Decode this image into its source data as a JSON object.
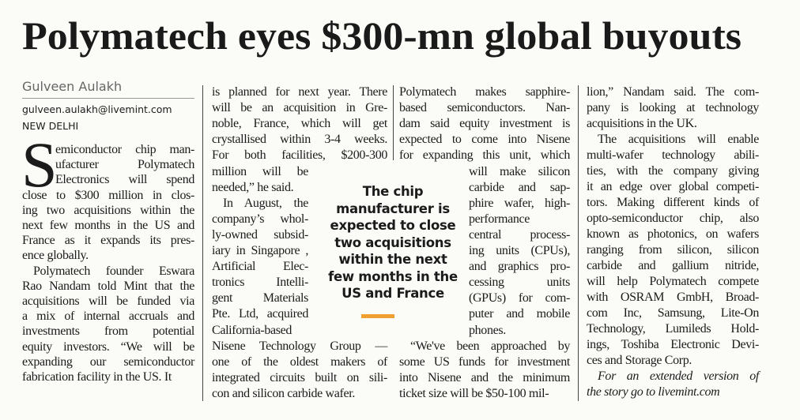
{
  "headline": "Polymatech eyes $300-mn global buyouts",
  "byline": {
    "author": "Gulveen Aulakh",
    "email": "gulveen.aulakh@livemint.com",
    "location": "NEW DELHI"
  },
  "drop_cap": "S",
  "columns": [
    {
      "paragraphs": [
        {
          "lines": [
            "emiconductor chip man-",
            "ufacturer Polymatech",
            "Electronics will spend",
            "close to $300 million in clos-",
            "ing two acquisitions within the",
            "next few months in the US and",
            "France as it expands its pres-",
            "ence globally."
          ]
        },
        {
          "lines": [
            "Polymatech founder Eswara",
            "Rao Nandam told Mint that the",
            "acquisitions will be funded via",
            "a mix of internal accruals and",
            "investments from potential",
            "equity investors. “We will be",
            "expanding our semiconductor",
            "fabrication facility in the US. It"
          ]
        }
      ]
    },
    {
      "paragraphs": [
        {
          "lines": [
            "is planned for next year. There",
            "will be an acquisition in Gre-",
            "noble, France, which will get",
            "crystallised within 3-4 weeks.",
            "For both facilities, $200-300",
            "million will be",
            "needed,” he said."
          ]
        },
        {
          "lines": [
            "In August, the",
            "company’s whol-",
            "ly-owned subsid-",
            "iary in Singapore ,",
            "Artificial Elec-",
            "tronics Intelli-",
            "gent Materials",
            "Pte. Ltd, acquired",
            "California-based",
            "Nisene Technology Group —",
            "one of the oldest makers of",
            "integrated circuits built on sili-",
            "con and silicon carbide wafer."
          ]
        }
      ]
    },
    {
      "paragraphs": [
        {
          "lines": [
            "Polymatech makes sapphire-",
            "based semiconductors. Nan-",
            "dam said equity investment is",
            "expected to come into Nisene",
            "for expanding this unit, which",
            "will make silicon",
            "carbide and sap-",
            "phire wafer, high-",
            "performance",
            "central process-",
            "ing units (CPUs),",
            "and graphics pro-",
            "cessing units",
            "(GPUs) for com-",
            "puter and mobile",
            "phones."
          ]
        },
        {
          "lines": [
            "“We've been approached by",
            "some US funds for investment",
            "into Nisene and the minimum",
            "ticket size will be $50-100 mil-"
          ]
        }
      ]
    },
    {
      "paragraphs": [
        {
          "lines": [
            "lion,” Nandam said. The com-",
            "pany is looking at technology",
            "acquisitions in the UK."
          ]
        },
        {
          "lines": [
            "The acquisitions will enable",
            "multi-wafer technology abili-",
            "ties, with the company giving",
            "it an edge over global competi-",
            "tors. Making different kinds of",
            "opto-semiconductor chip, also",
            "known as photonics, on wafers",
            "ranging from silicon, silicon",
            "carbide and gallium nitride,",
            "will help Polymatech compete",
            "with OSRAM GmbH, Broad-",
            "com Inc, Samsung, Lite-On",
            "Technology, Lumileds Hold-",
            "ings, Toshiba Electronic Devi-",
            "ces and Storage Corp."
          ]
        },
        {
          "lines": [
            "For an extended version of",
            "the story go to livemint.com"
          ],
          "italic": true
        }
      ]
    }
  ],
  "pull_quote": {
    "lines": [
      "The chip",
      "manufacturer is",
      "expected to close",
      "two acquisitions",
      "within the next",
      "few months in the",
      "US and France"
    ]
  }
}
